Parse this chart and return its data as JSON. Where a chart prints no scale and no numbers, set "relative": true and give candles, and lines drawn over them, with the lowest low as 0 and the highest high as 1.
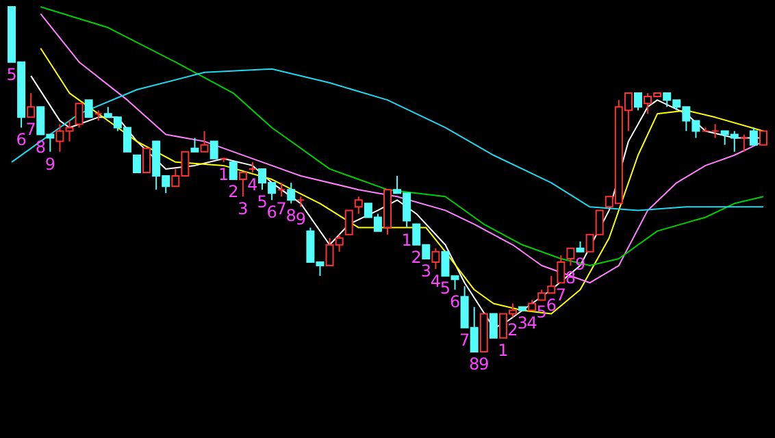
{
  "chart_data": {
    "type": "candlestick",
    "relative": true,
    "categories": [
      null,
      null,
      null,
      null,
      null,
      null,
      null,
      null,
      null,
      null,
      null,
      null,
      null,
      null,
      null,
      null,
      null,
      null,
      null,
      null,
      null,
      null,
      null,
      null,
      null,
      null,
      null,
      null,
      null,
      null,
      null,
      null,
      null,
      null,
      null,
      null,
      null,
      null,
      null,
      null,
      null,
      null,
      null,
      null,
      null,
      null,
      null,
      null,
      null,
      null,
      null,
      null,
      null,
      null,
      null,
      null,
      null,
      null,
      null,
      null,
      null,
      null,
      null,
      null,
      null,
      null,
      null,
      null,
      null,
      null,
      null,
      null,
      null,
      null,
      null,
      null,
      null,
      null,
      null
    ],
    "ohlc": [
      [
        1.0,
        1.0,
        0.84,
        0.84
      ],
      [
        0.84,
        0.84,
        0.65,
        0.68
      ],
      [
        0.68,
        0.75,
        0.68,
        0.71
      ],
      [
        0.71,
        0.71,
        0.63,
        0.63
      ],
      [
        0.63,
        0.63,
        0.58,
        0.62
      ],
      [
        0.61,
        0.66,
        0.58,
        0.64
      ],
      [
        0.64,
        0.67,
        0.61,
        0.65
      ],
      [
        0.66,
        0.72,
        0.65,
        0.72
      ],
      [
        0.73,
        0.73,
        0.68,
        0.68
      ],
      [
        0.69,
        0.7,
        0.67,
        0.69
      ],
      [
        0.69,
        0.71,
        0.68,
        0.68
      ],
      [
        0.68,
        0.68,
        0.64,
        0.65
      ],
      [
        0.65,
        0.65,
        0.58,
        0.58
      ],
      [
        0.57,
        0.57,
        0.52,
        0.52
      ],
      [
        0.52,
        0.59,
        0.52,
        0.59
      ],
      [
        0.61,
        0.61,
        0.47,
        0.51
      ],
      [
        0.51,
        0.51,
        0.46,
        0.48
      ],
      [
        0.48,
        0.53,
        0.48,
        0.51
      ],
      [
        0.51,
        0.58,
        0.51,
        0.58
      ],
      [
        0.59,
        0.62,
        0.58,
        0.58
      ],
      [
        0.58,
        0.64,
        0.58,
        0.6
      ],
      [
        0.61,
        0.61,
        0.56,
        0.56
      ],
      [
        0.56,
        0.56,
        0.55,
        0.56
      ],
      [
        0.55,
        0.55,
        0.5,
        0.5
      ],
      [
        0.5,
        0.52,
        0.45,
        0.52
      ],
      [
        0.53,
        0.55,
        0.52,
        0.53
      ],
      [
        0.53,
        0.53,
        0.47,
        0.49
      ],
      [
        0.49,
        0.49,
        0.44,
        0.46
      ],
      [
        0.47,
        0.49,
        0.45,
        0.47
      ],
      [
        0.47,
        0.49,
        0.43,
        0.44
      ],
      [
        0.44,
        0.45,
        0.42,
        0.44
      ],
      [
        0.35,
        0.36,
        0.26,
        0.26
      ],
      [
        0.26,
        0.26,
        0.22,
        0.25
      ],
      [
        0.25,
        0.33,
        0.25,
        0.31
      ],
      [
        0.31,
        0.34,
        0.29,
        0.33
      ],
      [
        0.34,
        0.41,
        0.34,
        0.41
      ],
      [
        0.42,
        0.45,
        0.4,
        0.44
      ],
      [
        0.43,
        0.43,
        0.39,
        0.39
      ],
      [
        0.39,
        0.4,
        0.35,
        0.35
      ],
      [
        0.36,
        0.47,
        0.34,
        0.47
      ],
      [
        0.47,
        0.51,
        0.46,
        0.46
      ],
      [
        0.46,
        0.46,
        0.36,
        0.38
      ],
      [
        0.37,
        0.37,
        0.31,
        0.31
      ],
      [
        0.31,
        0.31,
        0.27,
        0.27
      ],
      [
        0.26,
        0.3,
        0.24,
        0.29
      ],
      [
        0.29,
        0.29,
        0.22,
        0.22
      ],
      [
        0.22,
        0.22,
        0.18,
        0.21
      ],
      [
        0.16,
        0.19,
        0.07,
        0.07
      ],
      [
        0.07,
        0.13,
        0,
        0
      ],
      [
        0,
        0.11,
        0,
        0.11
      ],
      [
        0.11,
        0.11,
        0.04,
        0.04
      ],
      [
        0.04,
        0.11,
        0.04,
        0.11
      ],
      [
        0.11,
        0.14,
        0.1,
        0.12
      ],
      [
        0.13,
        0.13,
        0.12,
        0.12
      ],
      [
        0.12,
        0.15,
        0.12,
        0.14
      ],
      [
        0.15,
        0.18,
        0.15,
        0.17
      ],
      [
        0.17,
        0.22,
        0.17,
        0.19
      ],
      [
        0.2,
        0.28,
        0.2,
        0.26
      ],
      [
        0.27,
        0.3,
        0.25,
        0.3
      ],
      [
        0.3,
        0.32,
        0.29,
        0.29
      ],
      [
        0.29,
        0.34,
        0.29,
        0.34
      ],
      [
        0.34,
        0.41,
        0.34,
        0.41
      ],
      [
        0.42,
        0.45,
        0.42,
        0.45
      ],
      [
        0.43,
        0.73,
        0.43,
        0.71
      ],
      [
        0.7,
        0.75,
        0.64,
        0.75
      ],
      [
        0.75,
        0.75,
        0.7,
        0.71
      ],
      [
        0.72,
        0.75,
        0.69,
        0.74
      ],
      [
        0.74,
        0.75,
        0.74,
        0.75
      ],
      [
        0.75,
        0.75,
        0.71,
        0.73
      ],
      [
        0.73,
        0.73,
        0.7,
        0.71
      ],
      [
        0.71,
        0.71,
        0.64,
        0.67
      ],
      [
        0.67,
        0.67,
        0.62,
        0.64
      ],
      [
        0.64,
        0.65,
        0.64,
        0.64
      ],
      [
        0.64,
        0.66,
        0.62,
        0.64
      ],
      [
        0.64,
        0.64,
        0.6,
        0.63
      ],
      [
        0.63,
        0.64,
        0.58,
        0.62
      ],
      [
        0.62,
        0.63,
        0.58,
        0.62
      ],
      [
        0.64,
        0.65,
        0.6,
        0.6
      ],
      [
        0.6,
        0.64,
        0.6,
        0.64
      ]
    ],
    "value_labels": [
      "5",
      "6",
      "7",
      "8",
      "9",
      null,
      null,
      null,
      null,
      null,
      null,
      null,
      null,
      null,
      null,
      null,
      null,
      null,
      null,
      null,
      null,
      null,
      "1",
      "2",
      "3",
      "4",
      "5",
      "6",
      "7",
      "8",
      "9",
      null,
      null,
      null,
      null,
      null,
      null,
      null,
      null,
      null,
      null,
      "1",
      "2",
      "3",
      "4",
      "5",
      "6",
      "7",
      "8",
      "9",
      null,
      "1",
      "2",
      "3",
      "4",
      "5",
      "6",
      "7",
      "8",
      "9",
      null,
      null,
      null,
      null,
      null,
      null,
      null,
      null,
      null,
      null,
      null,
      null,
      null,
      null,
      null,
      null,
      null,
      null,
      null
    ],
    "series": [
      {
        "type": "line",
        "color": "#ffffff",
        "values": [
          null,
          null,
          0.8,
          null,
          null,
          0.67,
          0.65,
          null,
          null,
          0.68,
          null,
          0.68,
          null,
          0.61,
          null,
          null,
          0.53,
          null,
          null,
          0.54,
          null,
          null,
          0.56,
          null,
          null,
          0.54,
          null,
          0.49,
          null,
          null,
          0.43,
          null,
          null,
          0.31,
          null,
          0.37,
          null,
          null,
          0.41,
          null,
          0.44,
          null,
          0.4,
          null,
          null,
          0.31,
          null,
          0.2,
          null,
          null,
          0.07,
          0.08,
          null,
          0.12,
          null,
          null,
          0.18,
          null,
          null,
          0.25,
          null,
          null,
          0.41,
          null,
          0.61,
          null,
          0.71,
          0.73,
          null,
          null,
          0.69,
          null,
          0.64,
          null,
          null,
          0.62,
          null,
          null,
          0.62
        ]
      },
      {
        "type": "line",
        "color": "#ffff00",
        "values": [
          null,
          null,
          null,
          0.88,
          null,
          null,
          0.75,
          null,
          null,
          0.69,
          null,
          null,
          null,
          0.61,
          null,
          null,
          null,
          0.55,
          null,
          null,
          null,
          null,
          0.54,
          null,
          null,
          null,
          null,
          0.5,
          null,
          null,
          null,
          null,
          0.43,
          null,
          null,
          null,
          0.36,
          null,
          null,
          null,
          0.36,
          null,
          null,
          0.36,
          null,
          0.29,
          null,
          null,
          0.18,
          null,
          0.14,
          null,
          null,
          0.12,
          null,
          null,
          0.11,
          null,
          null,
          0.18,
          null,
          null,
          0.33,
          null,
          null,
          0.57,
          null,
          0.69,
          null,
          null,
          0.7,
          null,
          null,
          0.68,
          null,
          null,
          null,
          null,
          0.64
        ]
      },
      {
        "type": "line",
        "color": "#ff80ff",
        "values": [
          null,
          null,
          null,
          0.98,
          null,
          null,
          null,
          0.84,
          null,
          null,
          null,
          null,
          0.73,
          null,
          null,
          null,
          0.63,
          null,
          null,
          null,
          0.61,
          null,
          null,
          null,
          null,
          null,
          0.55,
          null,
          null,
          null,
          0.51,
          null,
          null,
          null,
          null,
          null,
          0.47,
          null,
          null,
          null,
          0.45,
          null,
          null,
          null,
          null,
          0.41,
          null,
          null,
          0.37,
          null,
          null,
          null,
          0.31,
          null,
          null,
          0.25,
          null,
          null,
          null,
          null,
          0.2,
          null,
          null,
          0.25,
          null,
          null,
          0.41,
          null,
          null,
          0.49,
          null,
          null,
          0.54,
          null,
          null,
          0.57,
          null,
          null,
          0.61
        ]
      },
      {
        "type": "line",
        "color": "#00d000",
        "values": [
          null,
          null,
          null,
          1.0,
          null,
          null,
          null,
          null,
          null,
          null,
          0.94,
          null,
          null,
          null,
          null,
          null,
          null,
          0.84,
          null,
          null,
          null,
          null,
          null,
          0.75,
          null,
          null,
          null,
          0.65,
          null,
          null,
          null,
          null,
          null,
          0.53,
          null,
          null,
          null,
          null,
          null,
          0.47,
          null,
          null,
          null,
          null,
          null,
          0.45,
          null,
          null,
          null,
          0.37,
          null,
          null,
          null,
          0.31,
          null,
          null,
          null,
          0.27,
          null,
          null,
          0.25,
          null,
          null,
          0.27,
          null,
          null,
          null,
          0.35,
          null,
          null,
          null,
          null,
          0.39,
          null,
          null,
          0.43,
          null,
          null,
          0.45
        ]
      },
      {
        "type": "line",
        "color": "#20d8f0",
        "values": [
          0.55,
          null,
          null,
          0.61,
          null,
          null,
          null,
          0.69,
          null,
          null,
          null,
          null,
          null,
          0.76,
          null,
          null,
          null,
          null,
          null,
          null,
          0.81,
          null,
          null,
          null,
          null,
          null,
          null,
          0.82,
          null,
          null,
          null,
          null,
          null,
          0.78,
          null,
          null,
          null,
          null,
          null,
          0.73,
          null,
          null,
          null,
          null,
          null,
          0.65,
          null,
          null,
          null,
          null,
          0.57,
          null,
          null,
          null,
          null,
          null,
          0.49,
          null,
          null,
          null,
          0.42,
          null,
          null,
          null,
          null,
          0.41,
          null,
          null,
          null,
          null,
          0.42,
          null,
          null,
          null,
          null,
          0.42,
          null,
          null,
          0.42
        ]
      }
    ]
  }
}
